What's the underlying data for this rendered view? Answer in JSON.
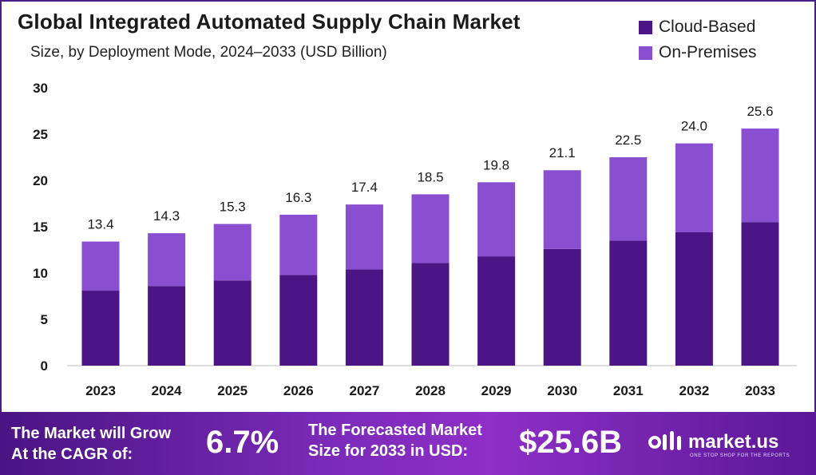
{
  "header": {
    "title": "Global Integrated Automated Supply Chain Market",
    "subtitle": "Size, by Deployment Mode, 2024–2033 (USD Billion)"
  },
  "legend": [
    {
      "label": "Cloud-Based",
      "color": "#4b1585"
    },
    {
      "label": "On-Premises",
      "color": "#8a4fd1"
    }
  ],
  "chart_data": {
    "type": "bar",
    "stacked": true,
    "categories": [
      "2023",
      "2024",
      "2025",
      "2026",
      "2027",
      "2028",
      "2029",
      "2030",
      "2031",
      "2032",
      "2033"
    ],
    "series": [
      {
        "name": "Cloud-Based",
        "color": "#4b1585",
        "values": [
          8.1,
          8.6,
          9.2,
          9.8,
          10.4,
          11.1,
          11.8,
          12.6,
          13.5,
          14.4,
          15.5
        ]
      },
      {
        "name": "On-Premises",
        "color": "#8a4fd1",
        "values": [
          5.3,
          5.7,
          6.1,
          6.5,
          7.0,
          7.4,
          8.0,
          8.5,
          9.0,
          9.6,
          10.1
        ]
      }
    ],
    "totals": [
      "13.4",
      "14.3",
      "15.3",
      "16.3",
      "17.4",
      "18.5",
      "19.8",
      "21.1",
      "22.5",
      "24.0",
      "25.6"
    ],
    "yticks": [
      "0",
      "5",
      "10",
      "15",
      "20",
      "25",
      "30"
    ],
    "ylim": [
      0,
      30
    ],
    "xlabel": "",
    "ylabel": "",
    "grid": false,
    "legend_position": "top-right"
  },
  "footer": {
    "cagr_label": "The Market will Grow\nAt the CAGR of:",
    "cagr_value": "6.7%",
    "forecast_label": "The Forecasted Market\nSize for 2033 in USD:",
    "forecast_value": "$25.6B",
    "brand_name": "market.us",
    "brand_tagline": "ONE STOP SHOP FOR THE REPORTS"
  }
}
